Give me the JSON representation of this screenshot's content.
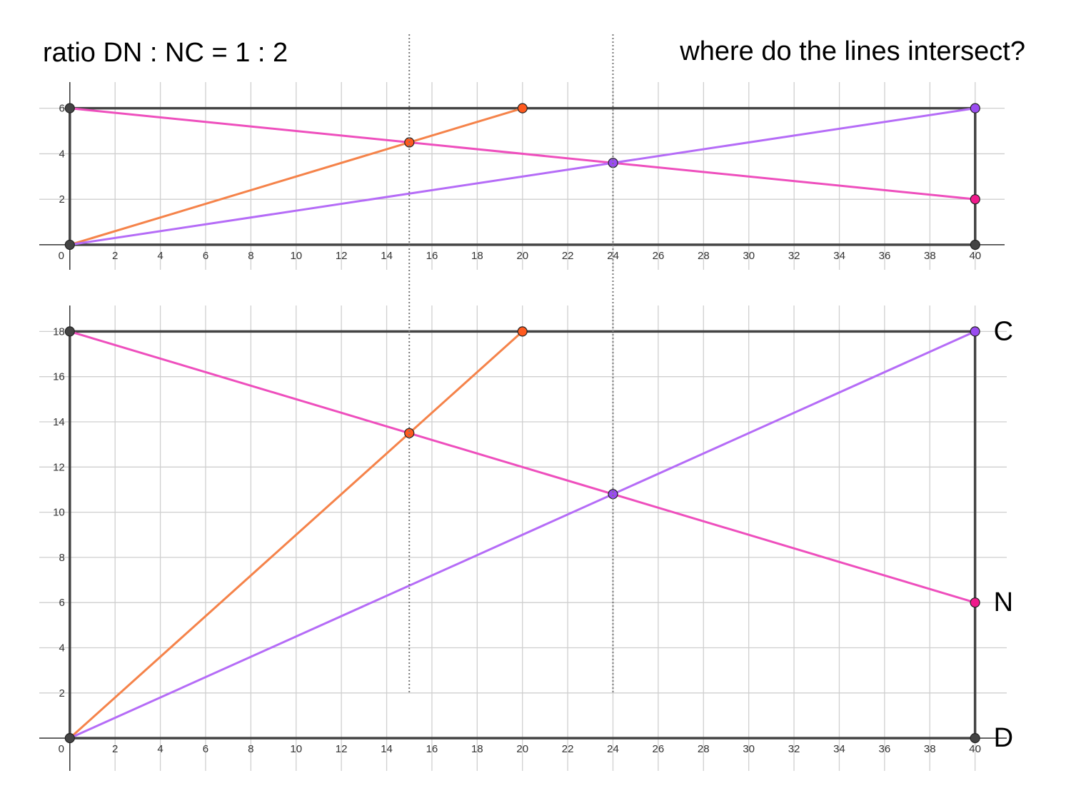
{
  "title": "ratio DN : NC = 1 : 2",
  "question": "where do the lines intersect?",
  "chart_data": [
    {
      "type": "line",
      "grid": true,
      "xlim": [
        -1.35,
        41.3
      ],
      "ylim": [
        -1.1,
        7.15
      ],
      "xticks": [
        0,
        2,
        4,
        6,
        8,
        10,
        12,
        14,
        16,
        18,
        20,
        22,
        24,
        26,
        28,
        30,
        32,
        34,
        36,
        38,
        40
      ],
      "yticks": [
        2,
        4,
        6
      ],
      "series": [
        {
          "color": "#444444",
          "x": [
            0,
            40,
            40,
            0,
            0
          ],
          "values": [
            0,
            0,
            6,
            6,
            0
          ]
        },
        {
          "color": "#ee4fbd",
          "x": [
            0,
            40
          ],
          "values": [
            6,
            2
          ]
        },
        {
          "color": "#f5834a",
          "x": [
            0,
            20
          ],
          "values": [
            0,
            6
          ]
        },
        {
          "color": "#b56cf7",
          "x": [
            0,
            40
          ],
          "values": [
            0,
            6
          ]
        }
      ],
      "points": {
        "x": [
          0,
          0,
          40,
          40,
          20,
          40,
          15,
          24
        ],
        "y": [
          0,
          6,
          0,
          6,
          6,
          2,
          4.5,
          3.6
        ],
        "colors": [
          "#444444",
          "#444444",
          "#444444",
          "#9a4cf0",
          "#ff5a1f",
          "#f01a8c",
          "#ff5a1f",
          "#9a4cf0"
        ]
      }
    },
    {
      "type": "line",
      "grid": true,
      "xlim": [
        -1.35,
        41.4
      ],
      "ylim": [
        -1.45,
        19.15
      ],
      "xticks": [
        0,
        2,
        4,
        6,
        8,
        10,
        12,
        14,
        16,
        18,
        20,
        22,
        24,
        26,
        28,
        30,
        32,
        34,
        36,
        38,
        40
      ],
      "yticks": [
        2,
        4,
        6,
        8,
        10,
        12,
        14,
        16,
        18
      ],
      "series": [
        {
          "color": "#444444",
          "x": [
            0,
            40,
            40,
            0,
            0
          ],
          "values": [
            0,
            0,
            18,
            18,
            0
          ]
        },
        {
          "color": "#ee4fbd",
          "x": [
            0,
            40
          ],
          "values": [
            18,
            6
          ]
        },
        {
          "color": "#f5834a",
          "x": [
            0,
            20
          ],
          "values": [
            0,
            18
          ]
        },
        {
          "color": "#b56cf7",
          "x": [
            0,
            40
          ],
          "values": [
            0,
            18
          ]
        }
      ],
      "points": {
        "x": [
          0,
          0,
          40,
          40,
          20,
          40,
          15,
          24
        ],
        "y": [
          0,
          18,
          0,
          18,
          18,
          6,
          13.5,
          10.8
        ],
        "colors": [
          "#444444",
          "#444444",
          "#444444",
          "#9a4cf0",
          "#ff5a1f",
          "#f01a8c",
          "#ff5a1f",
          "#9a4cf0"
        ]
      },
      "annotations": [
        {
          "text": "C",
          "x": 40,
          "y": 18
        },
        {
          "text": "N",
          "x": 40,
          "y": 6
        },
        {
          "text": "D",
          "x": 40,
          "y": 0
        }
      ],
      "vlines": {
        "x": [
          15,
          24
        ],
        "from": 2
      }
    }
  ]
}
